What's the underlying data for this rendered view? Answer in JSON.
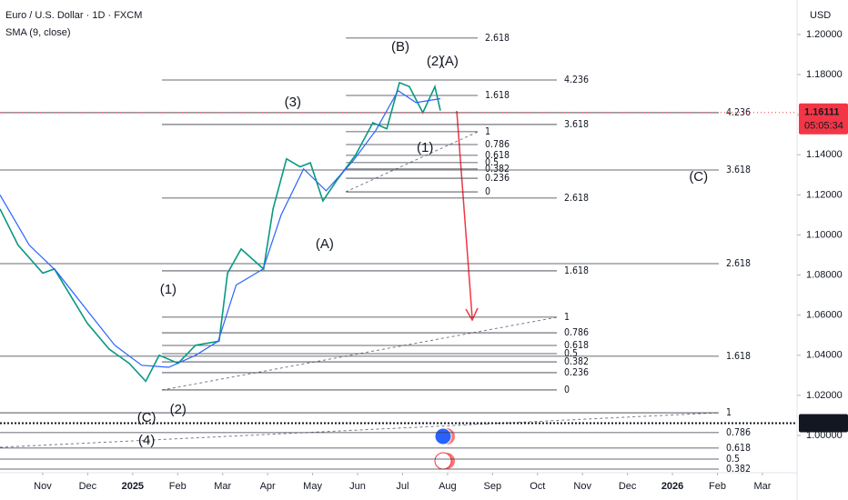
{
  "chart_data": {
    "type": "line",
    "title": "Euro / U.S. Dollar · 1D · FXCM",
    "subtitle": "SMA (9, close)",
    "currency": "USD",
    "xlim": [
      -0.95,
      16.77
    ],
    "ylim": [
      0.9814,
      1.2172
    ],
    "xticks": [
      {
        "value": 0,
        "label": "Nov"
      },
      {
        "value": 1,
        "label": "Dec"
      },
      {
        "value": 2,
        "label": "2025"
      },
      {
        "value": 3,
        "label": "Feb"
      },
      {
        "value": 4,
        "label": "Mar"
      },
      {
        "value": 5,
        "label": "Apr"
      },
      {
        "value": 6,
        "label": "May"
      },
      {
        "value": 7,
        "label": "Jun"
      },
      {
        "value": 8,
        "label": "Jul"
      },
      {
        "value": 9,
        "label": "Aug"
      },
      {
        "value": 10,
        "label": "Sep"
      },
      {
        "value": 11,
        "label": "Oct"
      },
      {
        "value": 12,
        "label": "Nov"
      },
      {
        "value": 13,
        "label": "Dec"
      },
      {
        "value": 14,
        "label": "2026"
      },
      {
        "value": 15,
        "label": "Feb"
      },
      {
        "value": 16,
        "label": "Mar"
      }
    ],
    "yticks": [
      {
        "value": 1.0,
        "label": "1.00000"
      },
      {
        "value": 1.02,
        "label": "1.02000"
      },
      {
        "value": 1.04,
        "label": "1.04000"
      },
      {
        "value": 1.06,
        "label": "1.06000"
      },
      {
        "value": 1.08,
        "label": "1.08000"
      },
      {
        "value": 1.1,
        "label": "1.10000"
      },
      {
        "value": 1.12,
        "label": "1.12000"
      },
      {
        "value": 1.14,
        "label": "1.14000"
      },
      {
        "value": 1.16,
        "label": "1.16000"
      },
      {
        "value": 1.18,
        "label": "1.18000"
      },
      {
        "value": 1.2,
        "label": "1.20000"
      }
    ],
    "series": [
      {
        "name": "EUR/USD",
        "color": "#089981",
        "x": [
          -0.95,
          -0.55,
          0,
          0.26,
          0.99,
          1.48,
          1.92,
          2.29,
          2.59,
          3.01,
          3.4,
          3.92,
          4.11,
          4.41,
          4.91,
          5.12,
          5.42,
          5.72,
          5.95,
          6.23,
          6.53,
          6.96,
          7.34,
          7.65,
          7.93,
          8.15,
          8.45,
          8.72,
          8.84
        ],
        "values": [
          1.113,
          1.095,
          1.081,
          1.083,
          1.056,
          1.043,
          1.036,
          1.027,
          1.04,
          1.036,
          1.045,
          1.047,
          1.081,
          1.093,
          1.083,
          1.113,
          1.138,
          1.134,
          1.136,
          1.117,
          1.127,
          1.14,
          1.156,
          1.153,
          1.176,
          1.174,
          1.161,
          1.174,
          1.162
        ]
      },
      {
        "name": "SMA (9, close)",
        "color": "#2962ff",
        "x": [
          -0.95,
          -0.3,
          0.3,
          1.0,
          1.6,
          2.2,
          2.8,
          3.4,
          3.9,
          4.3,
          4.9,
          5.3,
          5.8,
          6.3,
          6.9,
          7.4,
          7.9,
          8.3,
          8.84
        ],
        "values": [
          1.12,
          1.095,
          1.082,
          1.062,
          1.045,
          1.035,
          1.034,
          1.04,
          1.047,
          1.075,
          1.083,
          1.11,
          1.133,
          1.122,
          1.137,
          1.152,
          1.172,
          1.166,
          1.168
        ]
      }
    ],
    "levels": [
      {
        "label": "2.618",
        "value": 1.1982,
        "from": 6.74,
        "to": 9.67
      },
      {
        "label": "4.236",
        "value": 1.1773,
        "from": 2.65,
        "to": 11.43
      },
      {
        "label": "1.618",
        "value": 1.1696,
        "from": 6.74,
        "to": 9.67
      },
      {
        "label": "4.236",
        "value": 1.161,
        "from": -0.95,
        "to": 15.03
      },
      {
        "label": "3.618",
        "value": 1.1551,
        "from": 2.65,
        "to": 11.43
      },
      {
        "label": "1",
        "value": 1.1515,
        "from": 6.74,
        "to": 9.67
      },
      {
        "label": "0.786",
        "value": 1.1451,
        "from": 6.74,
        "to": 9.67
      },
      {
        "label": "0.618",
        "value": 1.1397,
        "from": 6.74,
        "to": 9.67
      },
      {
        "label": "0.5",
        "value": 1.1361,
        "from": 6.74,
        "to": 9.67
      },
      {
        "label": "0.382",
        "value": 1.1329,
        "from": 6.74,
        "to": 9.67
      },
      {
        "label": "3.618",
        "value": 1.1324,
        "from": -0.95,
        "to": 15.03
      },
      {
        "label": "0.236",
        "value": 1.1283,
        "from": 6.74,
        "to": 9.67
      },
      {
        "label": "0",
        "value": 1.1215,
        "from": 6.74,
        "to": 9.67
      },
      {
        "label": "2.618",
        "value": 1.1184,
        "from": 2.65,
        "to": 11.43
      },
      {
        "label": "2.618",
        "value": 1.0857,
        "from": -0.95,
        "to": 15.03
      },
      {
        "label": "1.618",
        "value": 1.0821,
        "from": 2.65,
        "to": 11.43
      },
      {
        "label": "1",
        "value": 1.059,
        "from": 2.65,
        "to": 11.43
      },
      {
        "label": "0.786",
        "value": 1.0512,
        "from": 2.65,
        "to": 11.43
      },
      {
        "label": "0.618",
        "value": 1.0449,
        "from": 2.65,
        "to": 11.43
      },
      {
        "label": "0.5",
        "value": 1.0408,
        "from": 2.65,
        "to": 11.43
      },
      {
        "label": "1.618",
        "value": 1.0395,
        "from": -0.95,
        "to": 15.03
      },
      {
        "label": "0.382",
        "value": 1.0367,
        "from": 2.65,
        "to": 11.43
      },
      {
        "label": "0.236",
        "value": 1.0313,
        "from": 2.65,
        "to": 11.43
      },
      {
        "label": "0",
        "value": 1.0227,
        "from": 2.65,
        "to": 11.43
      },
      {
        "label": "1",
        "value": 1.0113,
        "from": -0.95,
        "to": 15.03
      },
      {
        "label": "0.786",
        "value": 1.0014,
        "from": -0.95,
        "to": 15.03
      },
      {
        "label": "0.618",
        "value": 0.9937,
        "from": -0.95,
        "to": 15.03
      },
      {
        "label": "0.5",
        "value": 0.9882,
        "from": -0.95,
        "to": 15.03
      },
      {
        "label": "0.382",
        "value": 0.9832,
        "from": -0.95,
        "to": 15.03
      }
    ],
    "annotations": [
      {
        "text": "(B)",
        "x": 7.95,
        "y": 1.1935,
        "color": "#26a69a"
      },
      {
        "text": "(2)",
        "x": 8.72,
        "y": 1.1863,
        "color": "#f23645"
      },
      {
        "text": "(A)",
        "x": 9.04,
        "y": 1.1863,
        "color": "#2962ff"
      },
      {
        "text": "(3)",
        "x": 5.56,
        "y": 1.166,
        "color": "#131722"
      },
      {
        "text": "(1)",
        "x": 8.5,
        "y": 1.1433,
        "color": "#f23645"
      },
      {
        "text": "(A)",
        "x": 6.27,
        "y": 1.0952,
        "color": "#26a69a"
      },
      {
        "text": "(1)",
        "x": 2.79,
        "y": 1.0725,
        "color": "#131722"
      },
      {
        "text": "(2)",
        "x": 3.01,
        "y": 1.0127,
        "color": "#131722"
      },
      {
        "text": "(C)",
        "x": 2.31,
        "y": 1.0086,
        "color": "#2962ff"
      },
      {
        "text": "(4)",
        "x": 2.31,
        "y": 0.9973,
        "color": "#f23645"
      },
      {
        "text": "(C)",
        "x": 14.58,
        "y": 1.1288,
        "color": "#26a69a"
      }
    ],
    "price_tags": [
      {
        "value": 1.16111,
        "label": "1.16111",
        "countdown": "05:05:34",
        "color": "#f23645"
      },
      {
        "value": 1.0061,
        "label": "1.00610",
        "color": "#131722"
      }
    ]
  }
}
